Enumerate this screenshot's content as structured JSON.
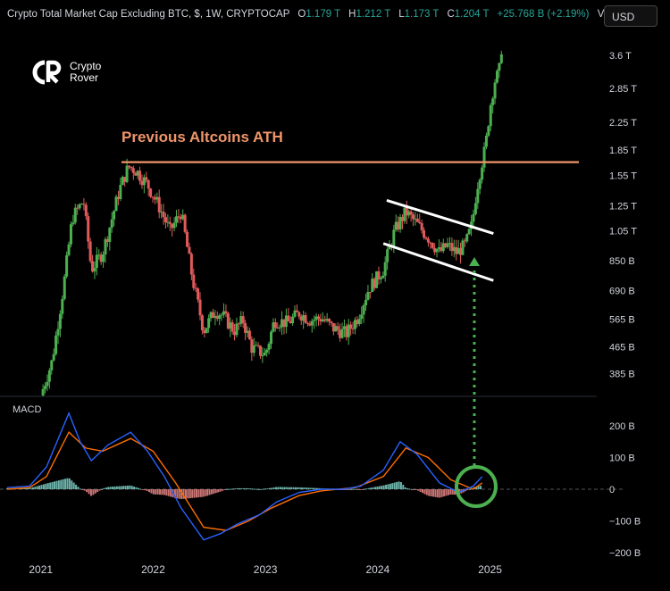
{
  "header": {
    "title": "Crypto Total Market Cap Excluding BTC, $, 1W, CRYPTOCAP",
    "open_label": "O",
    "open": "1.179 T",
    "high_label": "H",
    "high": "1.212 T",
    "low_label": "L",
    "low": "1.173 T",
    "close_label": "C",
    "close": "1.204 T",
    "change": "+25.768 B (+2.19%)",
    "vol_label": "Vol..."
  },
  "currency_button": "USD",
  "logo": {
    "line1": "Crypto",
    "line2": "Rover"
  },
  "annotation": "Previous Altcoins ATH",
  "macd_label": "MACD",
  "colors": {
    "up": "#4caf50",
    "down": "#e05a5a",
    "ath": "#f0956a",
    "macd": "#2962ff",
    "signal": "#ff6d00",
    "arrow": "#4caf50"
  },
  "chart_data": {
    "type": "candlestick",
    "title": "Crypto Total Market Cap Excluding BTC, $, 1W, CRYPTOCAP",
    "price_axis": {
      "scale": "log",
      "ticks": [
        "3.6 T",
        "2.85 T",
        "2.25 T",
        "1.85 T",
        "1.55 T",
        "1.25 T",
        "1.05 T",
        "850 B",
        "690 B",
        "565 B",
        "465 B",
        "385 B"
      ],
      "tick_values": [
        3600,
        2850,
        2250,
        1850,
        1550,
        1250,
        1050,
        850,
        690,
        565,
        465,
        385
      ],
      "unit": "B USD"
    },
    "x_axis": {
      "labels": [
        "2021",
        "2022",
        "2023",
        "2024",
        "2025"
      ],
      "label_values": [
        2021.0,
        2022.0,
        2023.0,
        2024.0,
        2025.0
      ],
      "range": [
        2020.7,
        2025.95
      ]
    },
    "ath_level": 1700,
    "price_path": [
      [
        2021.0,
        330
      ],
      [
        2021.1,
        420
      ],
      [
        2021.2,
        700
      ],
      [
        2021.28,
        1150
      ],
      [
        2021.38,
        1300
      ],
      [
        2021.45,
        800
      ],
      [
        2021.55,
        900
      ],
      [
        2021.62,
        1100
      ],
      [
        2021.7,
        1400
      ],
      [
        2021.78,
        1650
      ],
      [
        2021.85,
        1600
      ],
      [
        2021.95,
        1450
      ],
      [
        2022.05,
        1250
      ],
      [
        2022.15,
        1050
      ],
      [
        2022.25,
        1200
      ],
      [
        2022.35,
        750
      ],
      [
        2022.45,
        520
      ],
      [
        2022.55,
        600
      ],
      [
        2022.62,
        580
      ],
      [
        2022.72,
        520
      ],
      [
        2022.8,
        560
      ],
      [
        2022.88,
        460
      ],
      [
        2023.0,
        440
      ],
      [
        2023.08,
        560
      ],
      [
        2023.2,
        550
      ],
      [
        2023.3,
        590
      ],
      [
        2023.4,
        560
      ],
      [
        2023.5,
        570
      ],
      [
        2023.6,
        530
      ],
      [
        2023.72,
        510
      ],
      [
        2023.82,
        570
      ],
      [
        2023.92,
        700
      ],
      [
        2024.05,
        800
      ],
      [
        2024.15,
        1050
      ],
      [
        2024.25,
        1200
      ],
      [
        2024.35,
        1100
      ],
      [
        2024.45,
        1000
      ],
      [
        2024.55,
        900
      ],
      [
        2024.62,
        950
      ],
      [
        2024.7,
        900
      ],
      [
        2024.78,
        950
      ],
      [
        2024.84,
        1100
      ],
      [
        2024.88,
        1400
      ],
      [
        2024.92,
        1650
      ],
      [
        2024.96,
        1900
      ],
      [
        2025.0,
        2500
      ],
      [
        2025.04,
        3000
      ],
      [
        2025.08,
        3200
      ],
      [
        2025.12,
        4400
      ]
    ],
    "macd": {
      "axis_ticks": [
        "200 B",
        "100 B",
        "0",
        "−100 B",
        "−200 B"
      ],
      "axis_values": [
        200,
        100,
        0,
        -100,
        -200
      ],
      "macd_line": [
        [
          2020.7,
          5
        ],
        [
          2020.9,
          10
        ],
        [
          2021.05,
          70
        ],
        [
          2021.25,
          240
        ],
        [
          2021.35,
          150
        ],
        [
          2021.45,
          90
        ],
        [
          2021.6,
          140
        ],
        [
          2021.8,
          180
        ],
        [
          2021.95,
          120
        ],
        [
          2022.1,
          40
        ],
        [
          2022.25,
          -60
        ],
        [
          2022.45,
          -160
        ],
        [
          2022.6,
          -140
        ],
        [
          2022.75,
          -110
        ],
        [
          2022.95,
          -80
        ],
        [
          2023.1,
          -40
        ],
        [
          2023.3,
          -10
        ],
        [
          2023.5,
          0
        ],
        [
          2023.7,
          0
        ],
        [
          2023.85,
          10
        ],
        [
          2024.05,
          60
        ],
        [
          2024.2,
          150
        ],
        [
          2024.35,
          110
        ],
        [
          2024.55,
          20
        ],
        [
          2024.72,
          -10
        ],
        [
          2024.85,
          10
        ],
        [
          2024.93,
          40
        ]
      ],
      "signal_line": [
        [
          2020.7,
          0
        ],
        [
          2020.9,
          5
        ],
        [
          2021.05,
          40
        ],
        [
          2021.25,
          180
        ],
        [
          2021.4,
          130
        ],
        [
          2021.55,
          120
        ],
        [
          2021.8,
          160
        ],
        [
          2022.0,
          120
        ],
        [
          2022.2,
          20
        ],
        [
          2022.45,
          -120
        ],
        [
          2022.65,
          -130
        ],
        [
          2022.85,
          -100
        ],
        [
          2023.05,
          -60
        ],
        [
          2023.3,
          -20
        ],
        [
          2023.5,
          -5
        ],
        [
          2023.8,
          5
        ],
        [
          2024.05,
          40
        ],
        [
          2024.25,
          130
        ],
        [
          2024.45,
          100
        ],
        [
          2024.65,
          30
        ],
        [
          2024.85,
          0
        ],
        [
          2024.93,
          20
        ]
      ]
    }
  }
}
